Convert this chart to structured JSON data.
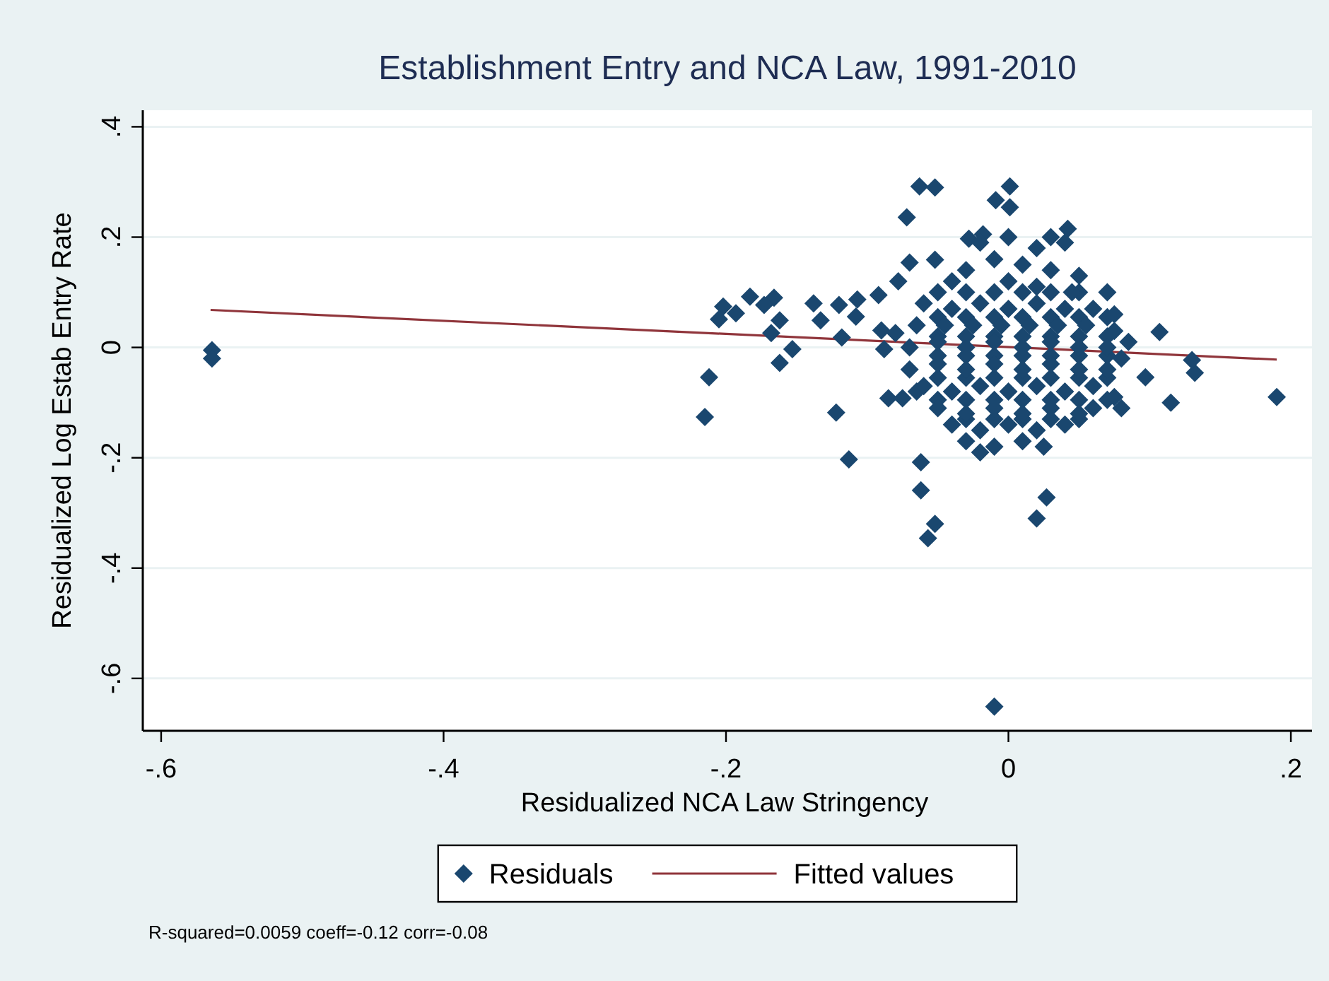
{
  "chart_data": {
    "type": "scatter",
    "title": "Establishment Entry and NCA Law, 1991-2010",
    "xlabel": "Residualized NCA Law Stringency",
    "ylabel": "Residualized Log Estab Entry Rate",
    "xlim": [
      -0.613,
      0.215
    ],
    "ylim": [
      -0.695,
      0.43
    ],
    "xticks": [
      {
        "value": -0.6,
        "label": "-.6"
      },
      {
        "value": -0.4,
        "label": "-.4"
      },
      {
        "value": -0.2,
        "label": "-.2"
      },
      0,
      {
        "value": 0.2,
        "label": ".2"
      }
    ],
    "yticks": [
      {
        "value": -0.6,
        "label": "-.6"
      },
      {
        "value": -0.4,
        "label": "-.4"
      },
      {
        "value": -0.2,
        "label": "-.2"
      },
      0,
      {
        "value": 0.2,
        "label": ".2"
      },
      {
        "value": 0.4,
        "label": ".4"
      }
    ],
    "grid": "y",
    "legend": "bottom",
    "annotations": [
      "R-squared=0.0059 coeff=-0.12 corr=-0.08"
    ],
    "series": [
      {
        "name": "Residuals",
        "marker": "diamond",
        "color": "#1a476f",
        "x": [
          -0.05,
          -0.03,
          -0.01,
          0.01,
          0.03,
          0.05,
          0.07,
          -0.05,
          -0.03,
          -0.01,
          0.01,
          0.03,
          0.05,
          0.07,
          -0.05,
          -0.03,
          -0.01,
          0.01,
          0.03,
          0.05,
          0.07,
          -0.05,
          -0.03,
          -0.01,
          0.01,
          0.03,
          0.05,
          0.07,
          -0.05,
          -0.03,
          -0.01,
          0.01,
          0.03,
          0.05,
          0.07,
          -0.05,
          -0.03,
          -0.01,
          0.01,
          0.03,
          0.05,
          0.07,
          -0.03,
          -0.01,
          0.01,
          0.03,
          0.05,
          -0.564,
          -0.564,
          -0.212,
          -0.215,
          -0.063,
          -0.052,
          0.001,
          -0.009,
          0.001,
          -0.072,
          0.042,
          -0.028,
          -0.018,
          -0.052,
          -0.07,
          -0.078,
          -0.092,
          -0.107,
          -0.12,
          -0.138,
          -0.133,
          -0.166,
          -0.183,
          -0.173,
          -0.202,
          -0.205,
          -0.193,
          -0.162,
          -0.168,
          -0.153,
          -0.162,
          -0.118,
          -0.108,
          -0.09,
          -0.08,
          -0.088,
          -0.122,
          -0.113,
          -0.085,
          -0.075,
          -0.065,
          -0.062,
          -0.062,
          -0.052,
          -0.057,
          0.027,
          0.02,
          0.107,
          0.115,
          0.097,
          0.132,
          0.13,
          0.19,
          -0.01,
          -0.02,
          0.0,
          0.02,
          0.03,
          0.04,
          -0.01,
          0.01,
          0.03,
          -0.04,
          -0.03,
          0.0,
          0.02,
          0.045,
          0.05,
          -0.06,
          -0.04,
          -0.02,
          0.0,
          0.02,
          0.04,
          0.06,
          0.075,
          -0.065,
          -0.045,
          -0.025,
          -0.005,
          0.015,
          0.035,
          0.055,
          0.075,
          0.085,
          -0.07,
          -0.05,
          -0.03,
          -0.01,
          0.01,
          0.03,
          0.05,
          0.07,
          0.08,
          -0.07,
          -0.05,
          -0.03,
          -0.01,
          0.01,
          0.03,
          0.05,
          0.07,
          -0.06,
          -0.04,
          -0.02,
          0.0,
          0.02,
          0.04,
          0.06,
          0.075,
          0.08,
          -0.05,
          -0.03,
          -0.01,
          0.01,
          0.03,
          0.05,
          0.06,
          -0.04,
          -0.02,
          0.0,
          0.02,
          0.04,
          -0.03,
          -0.01,
          0.01,
          0.025,
          -0.02
        ],
        "values": [
          0.1,
          0.1,
          0.1,
          0.1,
          0.1,
          0.1,
          0.1,
          0.055,
          0.055,
          0.055,
          0.055,
          0.055,
          0.055,
          0.055,
          0.02,
          0.02,
          0.02,
          0.02,
          0.02,
          0.02,
          0.02,
          -0.015,
          -0.015,
          -0.015,
          -0.015,
          -0.015,
          -0.015,
          -0.015,
          -0.055,
          -0.055,
          -0.055,
          -0.055,
          -0.055,
          -0.055,
          -0.055,
          -0.095,
          -0.095,
          -0.095,
          -0.095,
          -0.095,
          -0.095,
          -0.095,
          -0.13,
          -0.13,
          -0.13,
          -0.13,
          -0.13,
          -0.005,
          -0.02,
          -0.054,
          -0.126,
          0.292,
          0.29,
          0.292,
          0.267,
          0.254,
          0.236,
          0.215,
          0.197,
          0.205,
          0.159,
          0.154,
          0.12,
          0.095,
          0.087,
          0.077,
          0.08,
          0.049,
          0.09,
          0.092,
          0.077,
          0.074,
          0.051,
          0.062,
          0.049,
          0.026,
          -0.003,
          -0.028,
          0.018,
          0.056,
          0.031,
          0.026,
          -0.003,
          -0.118,
          -0.203,
          -0.092,
          -0.092,
          -0.08,
          -0.208,
          -0.259,
          -0.32,
          -0.346,
          -0.272,
          -0.31,
          0.028,
          -0.1,
          -0.054,
          -0.046,
          -0.023,
          -0.09,
          -0.651,
          0.19,
          0.2,
          0.18,
          0.2,
          0.19,
          0.16,
          0.15,
          0.14,
          0.12,
          0.14,
          0.12,
          0.11,
          0.1,
          0.13,
          0.08,
          0.07,
          0.08,
          0.07,
          0.08,
          0.07,
          0.07,
          0.06,
          0.04,
          0.04,
          0.04,
          0.04,
          0.04,
          0.04,
          0.04,
          0.03,
          0.01,
          0.0,
          0.01,
          0.0,
          0.01,
          0.0,
          0.01,
          0.0,
          0.0,
          -0.02,
          -0.04,
          -0.03,
          -0.04,
          -0.03,
          -0.04,
          -0.03,
          -0.04,
          -0.04,
          -0.07,
          -0.08,
          -0.07,
          -0.08,
          -0.07,
          -0.08,
          -0.07,
          -0.09,
          -0.11,
          -0.11,
          -0.12,
          -0.11,
          -0.12,
          -0.11,
          -0.12,
          -0.11,
          -0.14,
          -0.15,
          -0.14,
          -0.15,
          -0.14,
          -0.17,
          -0.18,
          -0.17,
          -0.18,
          -0.19
        ]
      },
      {
        "name": "Fitted values",
        "type": "line",
        "color": "#90353b",
        "x": [
          -0.565,
          0.19
        ],
        "values": [
          0.068,
          -0.022
        ]
      }
    ]
  }
}
